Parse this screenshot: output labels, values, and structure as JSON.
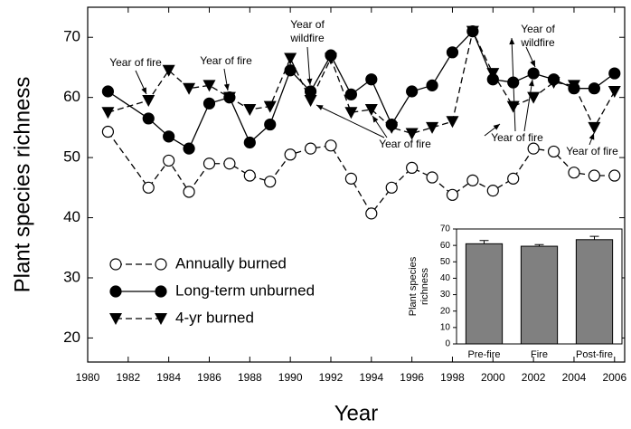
{
  "chart_data": [
    {
      "type": "line",
      "xlabel": "Year",
      "ylabel": "Plant species richness",
      "x": [
        1981,
        1983,
        1984,
        1985,
        1986,
        1987,
        1988,
        1989,
        1990,
        1991,
        1992,
        1993,
        1994,
        1995,
        1996,
        1997,
        1998,
        1999,
        2000,
        2001,
        2002,
        2003,
        2004,
        2005,
        2006
      ],
      "series": [
        {
          "name": "Annually burned",
          "color": "#000000",
          "marker": "open-circle",
          "dashed": true,
          "values": [
            54.3,
            45,
            49.5,
            44.3,
            49,
            49,
            47,
            46,
            50.5,
            51.5,
            52,
            46.5,
            40.7,
            45,
            48.3,
            46.7,
            43.8,
            46.2,
            44.5,
            46.5,
            51.5,
            51,
            47.5,
            47,
            47
          ]
        },
        {
          "name": "Long-term unburned",
          "color": "#000000",
          "marker": "filled-circle",
          "dashed": false,
          "values": [
            61,
            56.5,
            53.5,
            51.5,
            59,
            60,
            52.5,
            55.5,
            64.5,
            61,
            67,
            60.5,
            63,
            55.5,
            61,
            62,
            67.5,
            71,
            63,
            62.5,
            64,
            63,
            61.5,
            61.5,
            64
          ]
        },
        {
          "name": "4-yr burned",
          "color": "#000000",
          "marker": "triangle-down",
          "dashed": true,
          "values": [
            57.5,
            59.5,
            64.5,
            61.5,
            62,
            60,
            58,
            58.5,
            66.5,
            59.5,
            66.5,
            57.5,
            58,
            55,
            54,
            55,
            56,
            71,
            64,
            58.5,
            60,
            62.5,
            62,
            55,
            61
          ]
        }
      ],
      "xlim": [
        1980,
        2006.5
      ],
      "xticks": [
        1980,
        1982,
        1984,
        1986,
        1988,
        1990,
        1992,
        1994,
        1996,
        1998,
        2000,
        2002,
        2004,
        2006
      ],
      "ylim": [
        16,
        75
      ],
      "yticks": [
        20,
        30,
        40,
        50,
        60,
        70
      ],
      "legend": "lower left",
      "annotations": [
        {
          "lines": [
            "Year of fire"
          ]
        },
        {
          "lines": [
            "Year of fire"
          ]
        },
        {
          "lines": [
            "Year of",
            "wildfire"
          ]
        },
        {
          "lines": [
            "Year of fire"
          ]
        },
        {
          "lines": [
            "Year of fire"
          ]
        },
        {
          "lines": [
            "Year of",
            "wildfire"
          ]
        },
        {
          "lines": [
            "Year of fire"
          ]
        }
      ]
    },
    {
      "type": "bar",
      "ylabel": [
        "Plant species",
        "richness"
      ],
      "categories": [
        "Pre-fire",
        "Fire",
        "Post-fire"
      ],
      "values": [
        61,
        59.5,
        63.5
      ],
      "errors": [
        2,
        1,
        2
      ],
      "color": "#808080",
      "ylim": [
        0,
        70
      ],
      "yticks": [
        0,
        10,
        20,
        30,
        40,
        50,
        60,
        70
      ]
    }
  ]
}
